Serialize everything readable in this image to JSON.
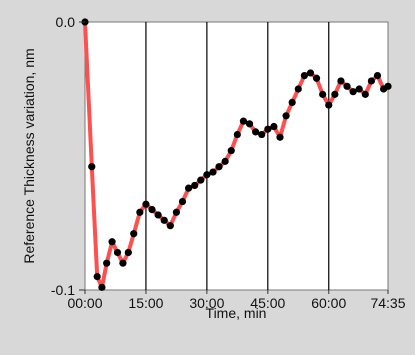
{
  "chart_data": {
    "type": "line",
    "xlabel": "Time, min",
    "ylabel": "Reference Thickness variation, nm",
    "xlim": [
      0,
      4475
    ],
    "ylim": [
      -0.1,
      0.0
    ],
    "grid": "vertical",
    "x_ticks": [
      {
        "label": "00:00",
        "value": 0
      },
      {
        "label": "15:00",
        "value": 900
      },
      {
        "label": "30:00",
        "value": 1800
      },
      {
        "label": "45:00",
        "value": 2700
      },
      {
        "label": "60:00",
        "value": 3600
      },
      {
        "label": "74:35",
        "value": 4475
      }
    ],
    "y_ticks": [
      {
        "label": "0.0",
        "value": 0.0
      },
      {
        "label": "-0.1",
        "value": -0.1
      }
    ],
    "series": [
      {
        "color": "#ff5050",
        "marker_color": "#000000",
        "x": [
          0,
          100,
          180,
          250,
          320,
          400,
          480,
          560,
          640,
          720,
          810,
          900,
          990,
          1080,
          1170,
          1260,
          1350,
          1440,
          1530,
          1620,
          1710,
          1800,
          1890,
          1980,
          2070,
          2160,
          2250,
          2340,
          2430,
          2520,
          2610,
          2700,
          2790,
          2880,
          2970,
          3060,
          3150,
          3240,
          3330,
          3420,
          3510,
          3600,
          3690,
          3780,
          3870,
          3960,
          4050,
          4140,
          4230,
          4320,
          4410,
          4475
        ],
        "y": [
          0.0,
          -0.054,
          -0.095,
          -0.099,
          -0.09,
          -0.082,
          -0.086,
          -0.09,
          -0.086,
          -0.079,
          -0.071,
          -0.068,
          -0.07,
          -0.072,
          -0.074,
          -0.076,
          -0.071,
          -0.067,
          -0.062,
          -0.061,
          -0.059,
          -0.057,
          -0.056,
          -0.054,
          -0.052,
          -0.048,
          -0.042,
          -0.037,
          -0.038,
          -0.041,
          -0.042,
          -0.04,
          -0.039,
          -0.043,
          -0.035,
          -0.03,
          -0.025,
          -0.02,
          -0.019,
          -0.021,
          -0.027,
          -0.031,
          -0.027,
          -0.022,
          -0.024,
          -0.026,
          -0.025,
          -0.027,
          -0.022,
          -0.02,
          -0.025,
          -0.024
        ]
      }
    ]
  }
}
